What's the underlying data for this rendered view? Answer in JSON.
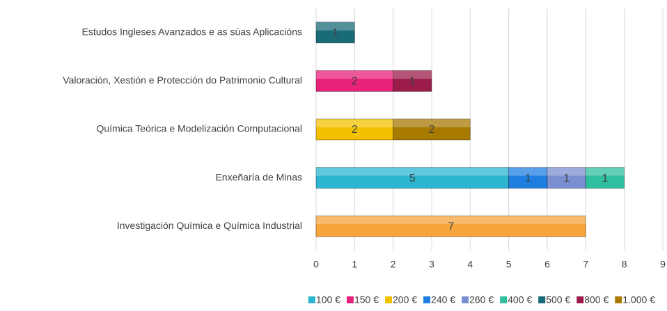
{
  "chart_data": {
    "type": "bar",
    "orientation": "horizontal",
    "stacked": true,
    "categories": [
      "Estudos Ingleses Avanzados e as súas Aplicacións",
      "Valoración, Xestión e Protección do Patrimonio Cultural",
      "Química Teórica e Modelización Computacional",
      "Enxeñaría de Minas",
      "Investigación Química e Química Industrial"
    ],
    "series": [
      {
        "name": "100 €",
        "color": "#2bb5d0",
        "values": [
          null,
          null,
          null,
          5,
          null
        ]
      },
      {
        "name": "150 €",
        "color": "#e8217a",
        "values": [
          null,
          2,
          null,
          null,
          null
        ]
      },
      {
        "name": "200 €",
        "color": "#f2c200",
        "values": [
          null,
          null,
          2,
          null,
          null
        ]
      },
      {
        "name": "240 €",
        "color": "#1f7fe0",
        "values": [
          null,
          null,
          null,
          1,
          null
        ]
      },
      {
        "name": "260 €",
        "color": "#7a8fd0",
        "values": [
          null,
          null,
          null,
          1,
          null
        ]
      },
      {
        "name": "400 €",
        "color": "#2fbf9f",
        "values": [
          null,
          null,
          null,
          1,
          null
        ]
      },
      {
        "name": "500 €",
        "color": "#1a6b78",
        "values": [
          1,
          null,
          null,
          null,
          null
        ]
      },
      {
        "name": "800 €",
        "color": "#9b1c4a",
        "values": [
          null,
          1,
          null,
          null,
          null
        ]
      },
      {
        "name": "1.000 €",
        "color": "#a87a00",
        "values": [
          null,
          null,
          2,
          null,
          null
        ]
      },
      {
        "color": "#f7a43a",
        "values": [
          null,
          null,
          null,
          null,
          7
        ]
      }
    ],
    "xlim": [
      0,
      9
    ],
    "xticks": [
      0,
      1,
      2,
      3,
      4,
      5,
      6,
      7,
      8,
      9
    ],
    "grid": true,
    "legend": "bottom"
  }
}
